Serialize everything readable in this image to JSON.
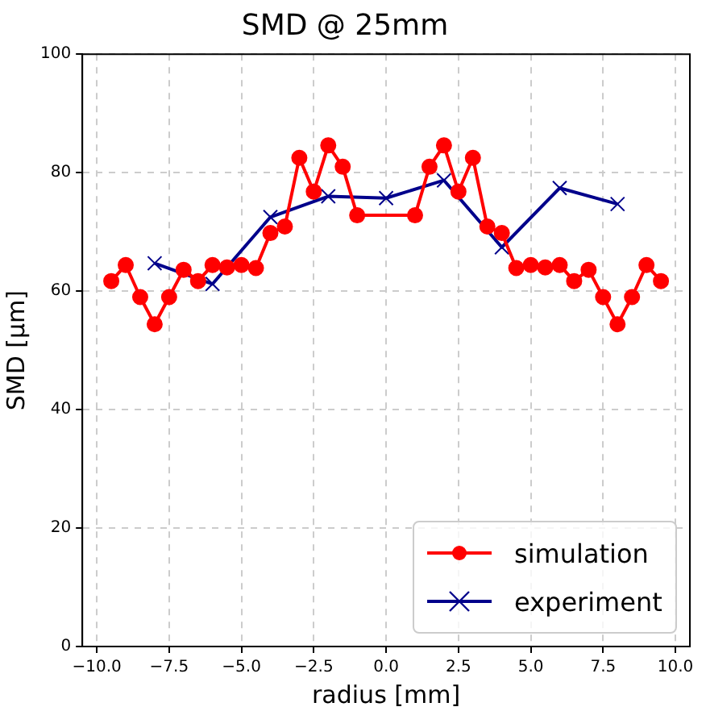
{
  "chart_data": {
    "type": "line",
    "title": "SMD @ 25mm",
    "xlabel": "radius [mm]",
    "ylabel": "SMD [µm]",
    "xlim": [
      -10.5,
      10.5
    ],
    "xticks": [
      {
        "value": -10,
        "label": "−10.0"
      },
      {
        "value": -7.5,
        "label": "−7.5"
      },
      {
        "value": -5,
        "label": "−5.0"
      },
      {
        "value": -2.5,
        "label": "−2.5"
      },
      {
        "value": 0,
        "label": "0.0"
      },
      {
        "value": 2.5,
        "label": "2.5"
      },
      {
        "value": 5,
        "label": "5.0"
      },
      {
        "value": 7.5,
        "label": "7.5"
      },
      {
        "value": 10,
        "label": "10.0"
      }
    ],
    "ylim": [
      0,
      100
    ],
    "yticks": [
      0,
      20,
      40,
      60,
      80,
      100
    ],
    "grid": true,
    "legend": "bottom right",
    "series": [
      {
        "name": "simulation",
        "color": "#ff0000",
        "marker": "circle",
        "x": [
          -9.5,
          -9,
          -8.5,
          -8,
          -7.5,
          -7,
          -6.5,
          -6,
          -5.5,
          -5,
          -4.5,
          -4,
          -3.5,
          -3,
          -2.5,
          -2,
          -1.5,
          -1,
          1,
          1.5,
          2,
          2.5,
          3,
          3.5,
          4,
          4.5,
          5,
          5.5,
          6,
          6.5,
          7,
          7.5,
          8,
          8.5,
          9,
          9.5
        ],
        "values": [
          61.7,
          64.4,
          59,
          54.4,
          59,
          63.6,
          61.7,
          64.4,
          64,
          64.4,
          63.9,
          69.8,
          70.9,
          82.5,
          76.8,
          84.6,
          81,
          72.8,
          72.8,
          81,
          84.6,
          76.8,
          82.5,
          70.9,
          69.8,
          63.9,
          64.4,
          64,
          64.4,
          61.7,
          63.6,
          59,
          54.4,
          59,
          64.4,
          61.7
        ]
      },
      {
        "name": "experiment",
        "color": "#00008b",
        "marker": "cross",
        "x": [
          -8,
          -6,
          -4,
          -2,
          0,
          2,
          4,
          6,
          8
        ],
        "values": [
          64.7,
          61.2,
          72.5,
          76,
          75.7,
          78.7,
          67.4,
          77.4,
          74.7
        ]
      }
    ]
  }
}
